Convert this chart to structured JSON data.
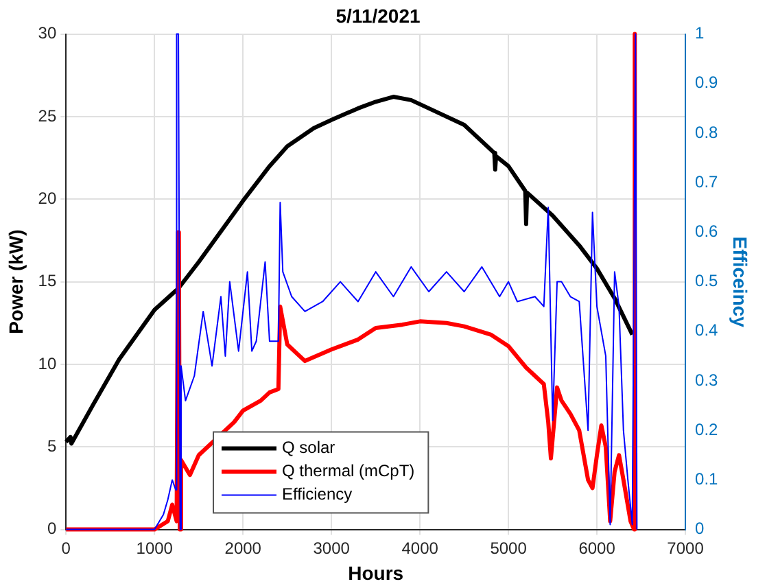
{
  "chart_data": {
    "type": "line",
    "title": "5/11/2021",
    "xlabel": "Hours",
    "ylabel": "Power (kW)",
    "y2label": "Efficeincy",
    "xlim": [
      0,
      7000
    ],
    "xticks": [
      0,
      {
        "value": 1000,
        "label": "1000"
      },
      {
        "value": 2000,
        "label": "2000"
      },
      {
        "value": 3000,
        "label": "3000"
      },
      {
        "value": 4000,
        "label": "4000"
      },
      {
        "value": 5000,
        "label": "5000"
      },
      {
        "value": 6000,
        "label": "6000"
      },
      {
        "value": 7000,
        "label": "7000"
      }
    ],
    "ylim": [
      0,
      30
    ],
    "yticks": [
      0,
      5,
      10,
      15,
      20,
      25,
      30
    ],
    "y2lim": [
      0,
      1
    ],
    "y2ticks": [
      0,
      0.1,
      0.2,
      0.3,
      0.4,
      0.5,
      0.6,
      0.7,
      0.8,
      0.9,
      {
        "value": 1,
        "label": "1"
      }
    ],
    "grid": true,
    "legend": "bottom",
    "line_style": "solid",
    "marker": "none",
    "series": [
      {
        "name": "Q solar",
        "color": "#000000",
        "x": [
          0,
          50,
          60,
          300,
          600,
          1000,
          1270,
          1500,
          2000,
          2300,
          2500,
          2800,
          3000,
          3300,
          3500,
          3700,
          3900,
          4100,
          4500,
          4840,
          4850,
          4860,
          5000,
          5190,
          5200,
          5210,
          5500,
          5800,
          6000,
          6200,
          6400
        ],
        "values": [
          5.3,
          5.6,
          5.2,
          7.5,
          10.3,
          13.3,
          14.6,
          16.2,
          19.9,
          22,
          23.2,
          24.3,
          24.8,
          25.5,
          25.9,
          26.2,
          26,
          25.5,
          24.5,
          22.8,
          21.8,
          22.6,
          22,
          20.5,
          18.5,
          20.4,
          19,
          17.2,
          15.8,
          14,
          11.8
        ]
      },
      {
        "name": "Q thermal (mCpT)",
        "color": "#ff0000",
        "x": [
          0,
          1000,
          1150,
          1200,
          1250,
          1265,
          1275,
          1285,
          1300,
          1400,
          1500,
          1700,
          1900,
          2000,
          2200,
          2300,
          2400,
          2420,
          2500,
          2700,
          3000,
          3300,
          3500,
          3800,
          4000,
          4300,
          4500,
          4800,
          5000,
          5200,
          5400,
          5450,
          5480,
          5550,
          5600,
          5700,
          5800,
          5900,
          5950,
          6000,
          6050,
          6100,
          6150,
          6200,
          6250,
          6300,
          6380,
          6420,
          6424,
          6428,
          6432
        ],
        "values": [
          0,
          0,
          0.5,
          1.5,
          0.5,
          18,
          18,
          0,
          4.2,
          3.3,
          4.5,
          5.5,
          6.5,
          7.2,
          7.8,
          8.3,
          8.5,
          13.5,
          11.2,
          10.2,
          10.9,
          11.5,
          12.2,
          12.4,
          12.6,
          12.5,
          12.3,
          11.8,
          11.1,
          9.8,
          8.8,
          6.5,
          4.3,
          8.6,
          7.8,
          7,
          6,
          3,
          2.5,
          4.5,
          6.3,
          5,
          0.5,
          3.5,
          4.5,
          3,
          0.5,
          0,
          30,
          30,
          0
        ]
      },
      {
        "name": "Efficiency",
        "color": "#0000ff",
        "axis": "y2",
        "x": [
          0,
          1000,
          1100,
          1150,
          1200,
          1240,
          1250,
          1270,
          1290,
          1300,
          1350,
          1450,
          1550,
          1650,
          1750,
          1800,
          1850,
          1950,
          2050,
          2100,
          2150,
          2250,
          2300,
          2350,
          2400,
          2420,
          2450,
          2550,
          2700,
          2900,
          3100,
          3300,
          3500,
          3700,
          3900,
          4100,
          4300,
          4500,
          4700,
          4900,
          5000,
          5100,
          5300,
          5400,
          5450,
          5500,
          5550,
          5600,
          5700,
          5800,
          5900,
          5950,
          6000,
          6100,
          6150,
          6200,
          6250,
          6300,
          6350,
          6400,
          6436,
          6444,
          6452
        ],
        "values": [
          0,
          0,
          0.03,
          0.06,
          0.1,
          0.08,
          1,
          1,
          0,
          0.33,
          0.26,
          0.31,
          0.44,
          0.33,
          0.47,
          0.35,
          0.5,
          0.36,
          0.52,
          0.36,
          0.38,
          0.54,
          0.38,
          0.38,
          0.38,
          0.66,
          0.52,
          0.47,
          0.44,
          0.46,
          0.5,
          0.46,
          0.52,
          0.47,
          0.53,
          0.48,
          0.52,
          0.48,
          0.53,
          0.47,
          0.5,
          0.46,
          0.47,
          0.45,
          0.65,
          0.22,
          0.5,
          0.5,
          0.47,
          0.46,
          0.2,
          0.64,
          0.45,
          0.35,
          0.01,
          0.52,
          0.45,
          0.2,
          0.1,
          0.01,
          1,
          1,
          0
        ]
      }
    ]
  }
}
